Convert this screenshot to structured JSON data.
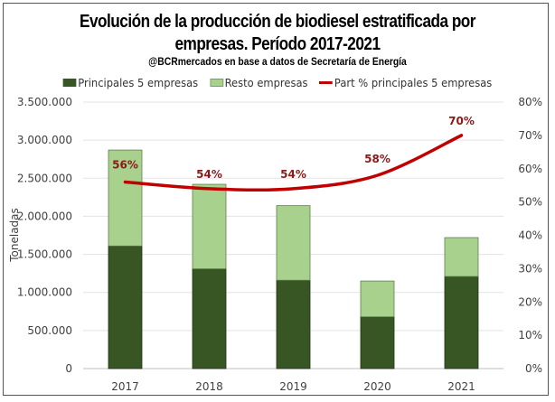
{
  "chart_data": {
    "type": "bar",
    "title": "Evolución de la producción de biodiesel estratificada por empresas. Período 2017-2021",
    "title_line1": "Evolución de la producción de biodiesel estratificada por",
    "title_line2": "empresas. Período 2017-2021",
    "subtitle": "@BCRmercados en base a datos de Secretaría de Energía",
    "categories": [
      "2017",
      "2018",
      "2019",
      "2020",
      "2021"
    ],
    "series": [
      {
        "name": "Principales 5 empresas",
        "kind": "stacked-bar",
        "axis": "left",
        "color": "#375623",
        "values": [
          1610000,
          1310000,
          1160000,
          680000,
          1210000
        ]
      },
      {
        "name": "Resto empresas",
        "kind": "stacked-bar",
        "axis": "left",
        "color": "#a9d18e",
        "values": [
          1260000,
          1110000,
          980000,
          470000,
          510000
        ]
      },
      {
        "name": "Part % principales 5 empresas",
        "kind": "line",
        "axis": "right",
        "color": "#c00000",
        "values": [
          56,
          54,
          54,
          58,
          70
        ],
        "labels": [
          "56%",
          "54%",
          "54%",
          "58%",
          "70%"
        ]
      }
    ],
    "xlabel": "",
    "ylabel": "Toneladas",
    "ylim": [
      0,
      3500000
    ],
    "y2lim": [
      0,
      80
    ],
    "yticks": [
      "0",
      "500.000",
      "1.000.000",
      "1.500.000",
      "2.000.000",
      "2.500.000",
      "3.000.000",
      "3.500.000"
    ],
    "y2ticks": [
      "0%",
      "10%",
      "20%",
      "30%",
      "40%",
      "50%",
      "60%",
      "70%",
      "80%"
    ],
    "grid": true,
    "legend_position": "top"
  }
}
